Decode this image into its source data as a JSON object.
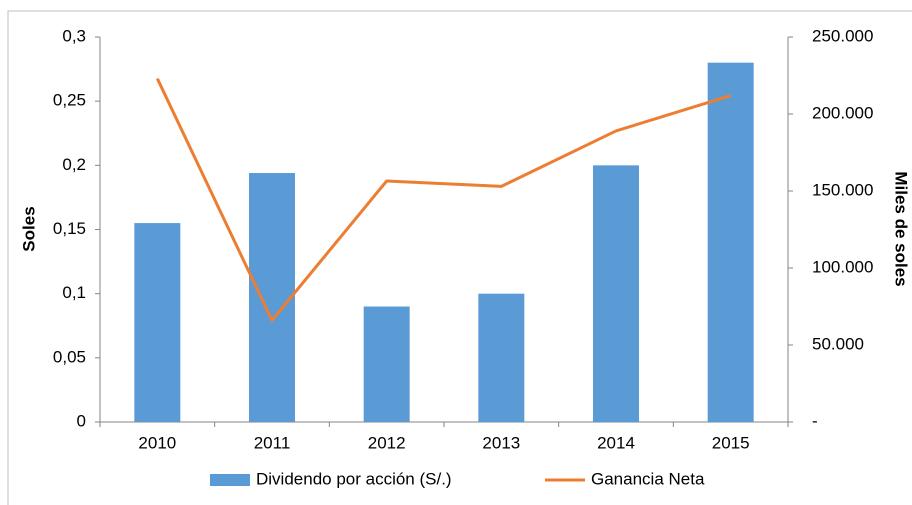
{
  "chart_data": {
    "type": "bar",
    "categories": [
      "2010",
      "2011",
      "2012",
      "2013",
      "2014",
      "2015"
    ],
    "y_label": "Soles",
    "y2_label": "Miles de soles",
    "ylim": [
      0,
      0.3
    ],
    "yticks": [
      0,
      {
        "value": 0.05,
        "label": "0,05"
      },
      {
        "value": 0.1,
        "label": "0,1"
      },
      {
        "value": 0.15,
        "label": "0,15"
      },
      {
        "value": 0.2,
        "label": "0,2"
      },
      {
        "value": 0.25,
        "label": "0,25"
      },
      {
        "value": 0.3,
        "label": "0,3"
      }
    ],
    "y2lim": [
      0,
      250000
    ],
    "y2ticks": [
      {
        "value": 0,
        "label": "-"
      },
      {
        "value": 50000,
        "label": "50.000"
      },
      {
        "value": 100000,
        "label": "100.000"
      },
      {
        "value": 150000,
        "label": "150.000"
      },
      {
        "value": 200000,
        "label": "200.000"
      },
      {
        "value": 250000,
        "label": "250.000"
      }
    ],
    "series": [
      {
        "name": "Dividendo por acción (S/.)",
        "type": "bar",
        "color": "#5b9bd5",
        "values": [
          0.155,
          0.194,
          0.09,
          0.1,
          0.2,
          0.28
        ]
      },
      {
        "name": "Ganancia Neta",
        "type": "line",
        "axis": "y2",
        "color": "#ed7d31",
        "values": [
          223000,
          66000,
          156500,
          153000,
          189000,
          212000
        ]
      }
    ],
    "legend": "bottom"
  }
}
